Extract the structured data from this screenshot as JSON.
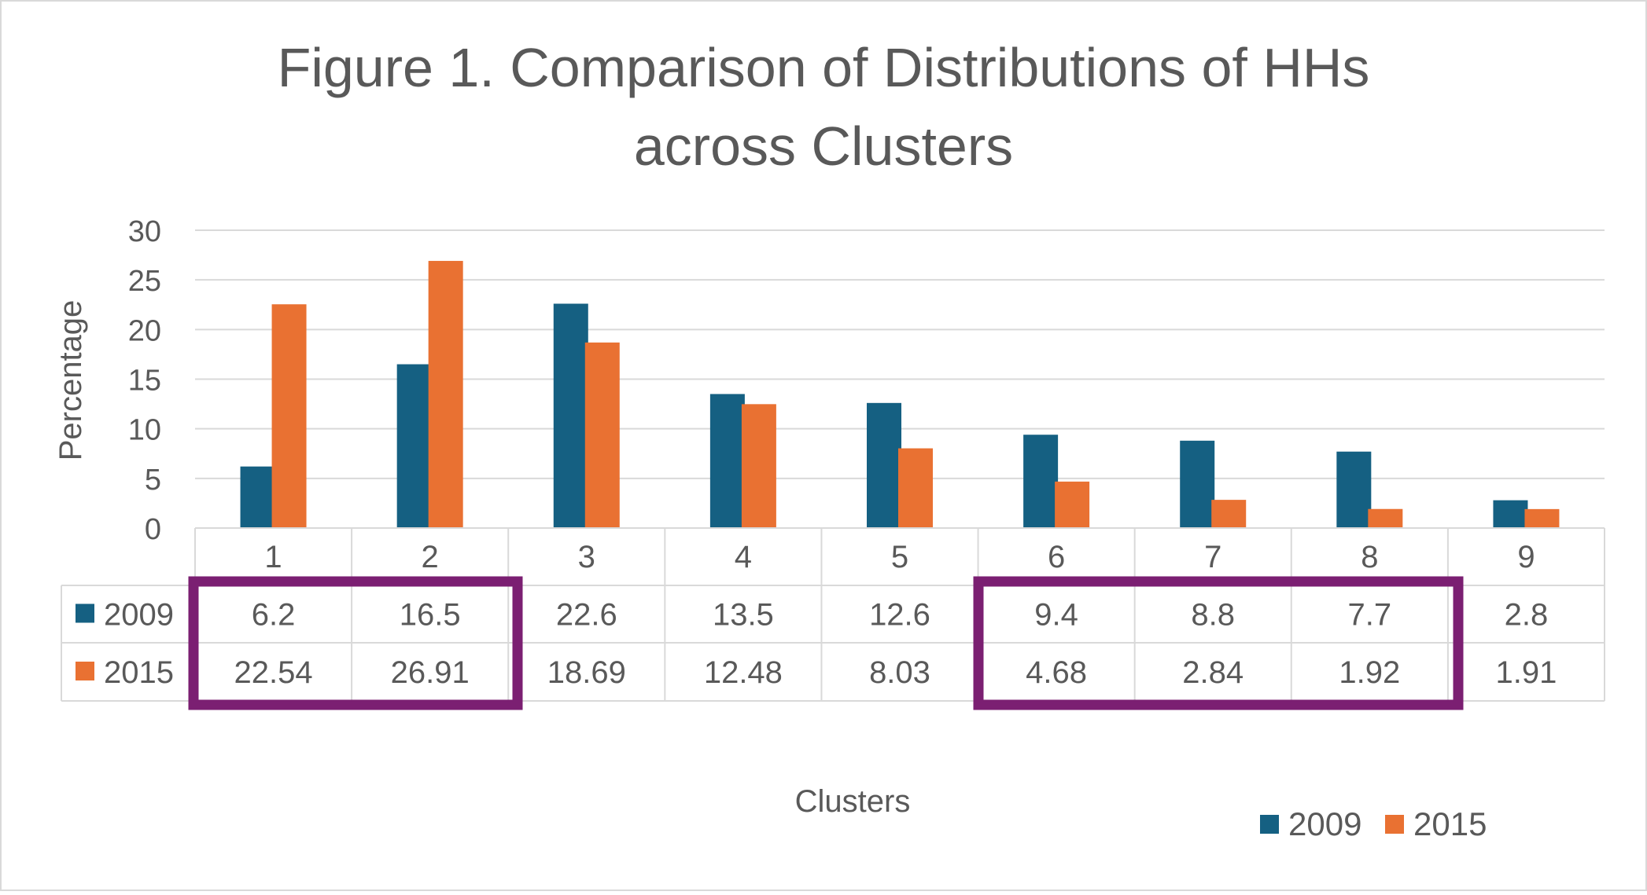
{
  "chart_data": {
    "type": "bar",
    "title": "Figure 1. Comparison of Distributions of HHs across Clusters",
    "title_lines": [
      "Figure 1. Comparison of Distributions of HHs",
      "across Clusters"
    ],
    "xlabel": "Clusters",
    "ylabel": "Percentage",
    "ylim": [
      0,
      30
    ],
    "yticks": [
      0,
      5,
      10,
      15,
      20,
      25,
      30
    ],
    "grid": true,
    "legend_position": "bottom-right",
    "categories": [
      "1",
      "2",
      "3",
      "4",
      "5",
      "6",
      "7",
      "8",
      "9"
    ],
    "series": [
      {
        "name": "2009",
        "color": "#156082",
        "values": [
          6.2,
          16.5,
          22.6,
          13.5,
          12.6,
          9.4,
          8.8,
          7.7,
          2.8
        ],
        "labels": [
          "6.2",
          "16.5",
          "22.6",
          "13.5",
          "12.6",
          "9.4",
          "8.8",
          "7.7",
          "2.8"
        ]
      },
      {
        "name": "2015",
        "color": "#E97132",
        "values": [
          22.54,
          26.91,
          18.69,
          12.48,
          8.03,
          4.68,
          2.84,
          1.92,
          1.91
        ],
        "labels": [
          "22.54",
          "26.91",
          "18.69",
          "12.48",
          "8.03",
          "4.68",
          "2.84",
          "1.92",
          "1.91"
        ]
      }
    ],
    "data_table": true,
    "highlights": [
      {
        "color": "#7B1F72",
        "from_category": "1",
        "to_category": "2"
      },
      {
        "color": "#7B1F72",
        "from_category": "6",
        "to_category": "8"
      }
    ]
  }
}
